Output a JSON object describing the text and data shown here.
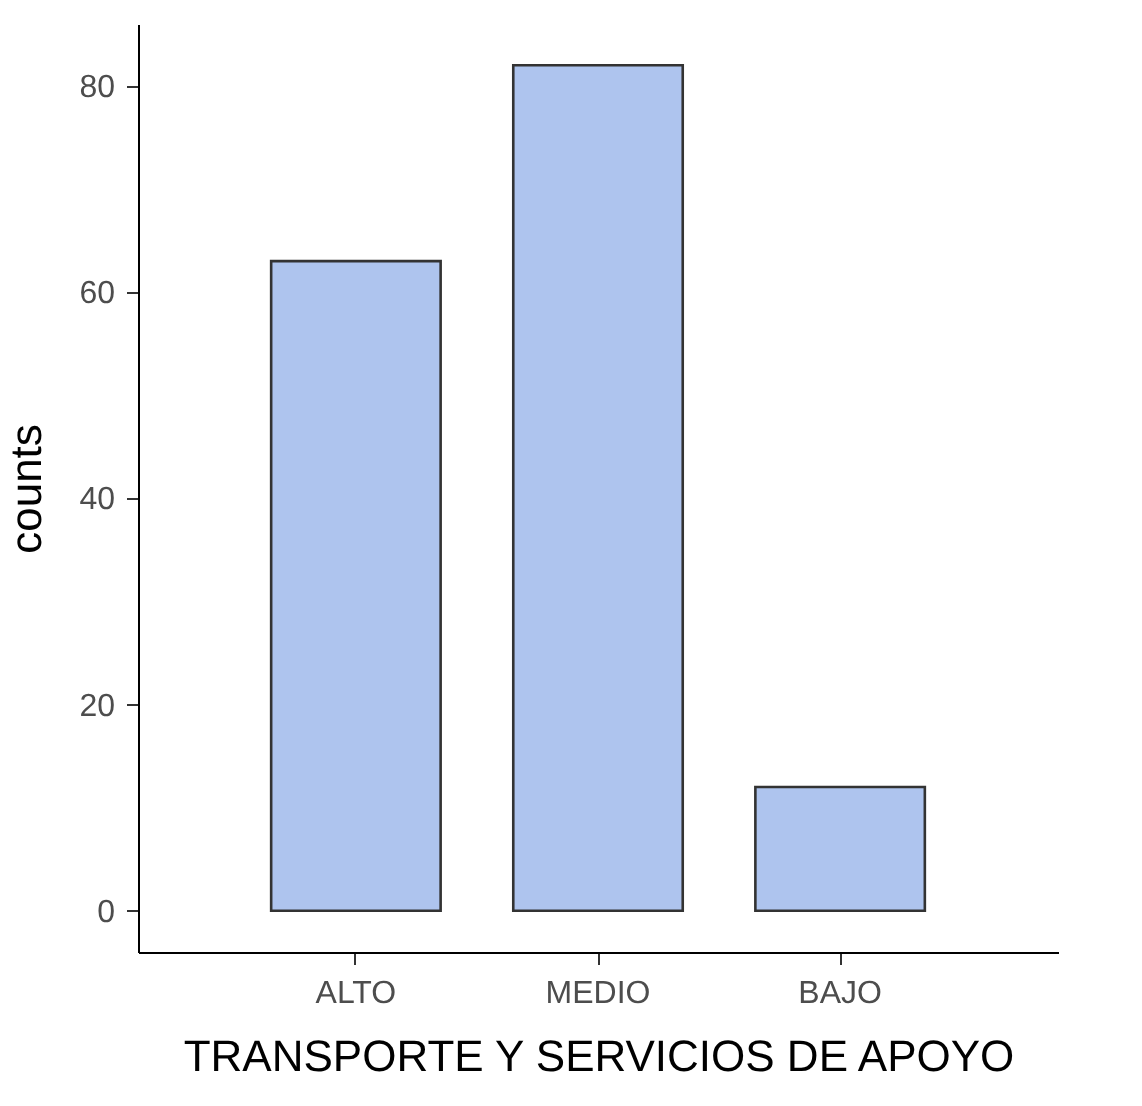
{
  "chart_data": {
    "type": "bar",
    "xlabel": "TRANSPORTE Y SERVICIOS DE APOYO",
    "ylabel": "counts",
    "categories": [
      "ALTO",
      "MEDIO",
      "BAJO"
    ],
    "values": [
      63,
      82,
      12
    ],
    "color": "#aec4ee",
    "ylim": [
      -4,
      86
    ],
    "yticks": [
      0,
      20,
      40,
      60,
      80
    ],
    "grid": false
  }
}
